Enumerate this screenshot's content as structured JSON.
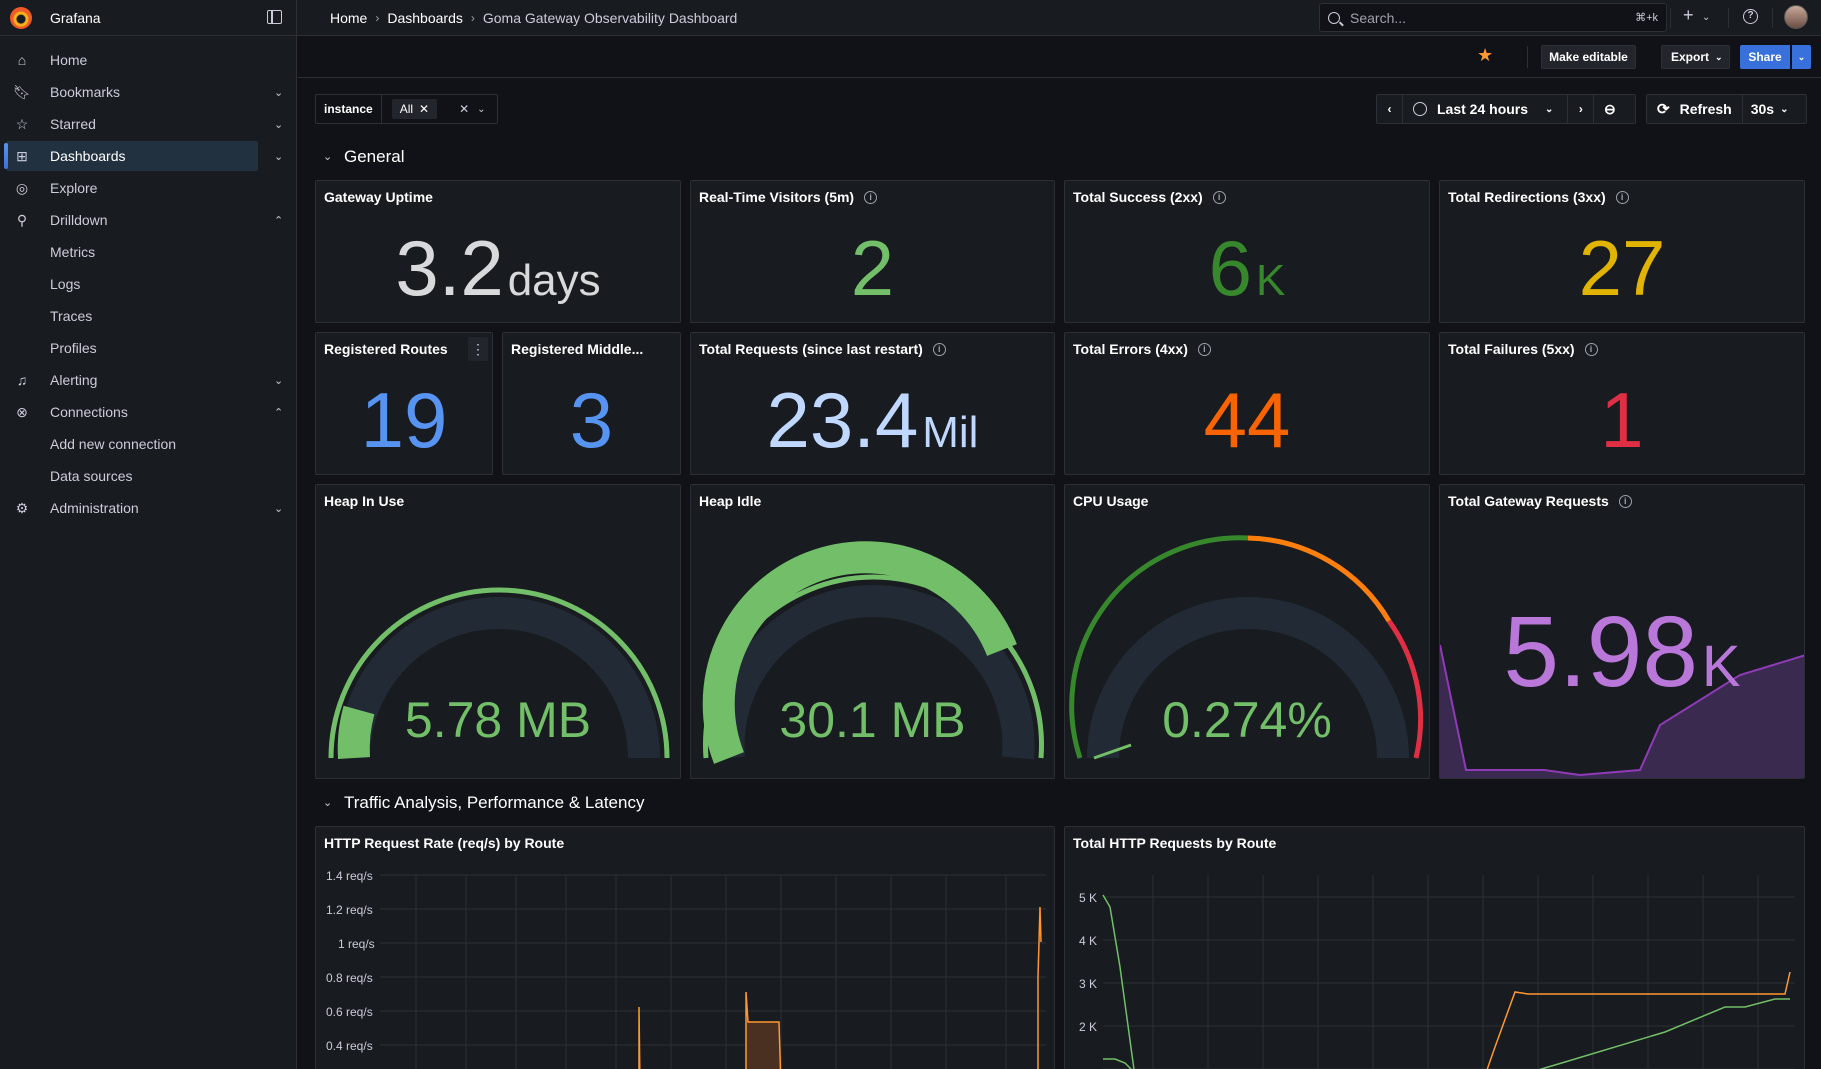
{
  "app": {
    "name": "Grafana"
  },
  "breadcrumb": [
    {
      "label": "Home"
    },
    {
      "label": "Dashboards"
    },
    {
      "label": "Goma Gateway Observability Dashboard"
    }
  ],
  "search": {
    "placeholder": "Search...",
    "shortcut": "⌘+k"
  },
  "sidebar": {
    "items": [
      {
        "label": "Home",
        "icon": "home-icon"
      },
      {
        "label": "Bookmarks",
        "icon": "bookmark-icon"
      },
      {
        "label": "Starred",
        "icon": "star-icon"
      },
      {
        "label": "Dashboards",
        "icon": "grid-icon"
      },
      {
        "label": "Explore",
        "icon": "compass-icon"
      },
      {
        "label": "Drilldown",
        "icon": "drilldown-icon"
      },
      {
        "label": "Alerting",
        "icon": "bell-icon"
      },
      {
        "label": "Connections",
        "icon": "connections-icon"
      },
      {
        "label": "Administration",
        "icon": "gear-icon"
      }
    ],
    "drilldown_children": [
      "Metrics",
      "Logs",
      "Traces",
      "Profiles"
    ],
    "connections_children": [
      "Add new connection",
      "Data sources"
    ]
  },
  "toolbar": {
    "make_editable": "Make editable",
    "export": "Export",
    "share": "Share"
  },
  "variables": {
    "name": "instance",
    "value": "All"
  },
  "time": {
    "range": "Last 24 hours",
    "refresh": "Refresh",
    "interval": "30s"
  },
  "rows": {
    "general": "General",
    "traffic": "Traffic Analysis, Performance & Latency"
  },
  "panels": {
    "uptime": {
      "title": "Gateway Uptime",
      "value": "3.2",
      "unit": "days",
      "color": "#d8d9da"
    },
    "visitors": {
      "title": "Real-Time Visitors (5m)",
      "value": "2",
      "color": "#73bf69"
    },
    "success": {
      "title": "Total Success (2xx)",
      "value": "6",
      "unit": "K",
      "color": "#37872d"
    },
    "redirections": {
      "title": "Total Redirections (3xx)",
      "value": "27",
      "color": "#e0b400"
    },
    "routes": {
      "title": "Registered Routes",
      "value": "19",
      "color": "#5794f2"
    },
    "middlewares": {
      "title": "Registered Middle...",
      "value": "3",
      "color": "#5794f2"
    },
    "requests": {
      "title": "Total Requests (since last restart)",
      "value": "23.4",
      "unit": "Mil",
      "color": "#c0d8ff"
    },
    "errors": {
      "title": "Total Errors (4xx)",
      "value": "44",
      "color": "#fa6400"
    },
    "failures": {
      "title": "Total Failures (5xx)",
      "value": "1",
      "color": "#e02f44"
    },
    "heap_in_use": {
      "title": "Heap In Use",
      "value": "5.78 MB",
      "fill": 0.06
    },
    "heap_idle": {
      "title": "Heap Idle",
      "value": "30.1 MB",
      "fill": 0.84
    },
    "cpu": {
      "title": "CPU Usage",
      "value": "0.274%",
      "fill": 0.02
    },
    "gateway_requests": {
      "title": "Total Gateway Requests",
      "value": "5.98",
      "unit": "K",
      "color": "#b877d9"
    },
    "rate_by_route": {
      "title": "HTTP Request Rate (req/s) by Route",
      "yticks": [
        "1.4 req/s",
        "1.2 req/s",
        "1 req/s",
        "0.8 req/s",
        "0.6 req/s",
        "0.4 req/s"
      ]
    },
    "total_by_route": {
      "title": "Total HTTP Requests by Route",
      "yticks": [
        "5 K",
        "4 K",
        "3 K",
        "2 K"
      ]
    }
  }
}
